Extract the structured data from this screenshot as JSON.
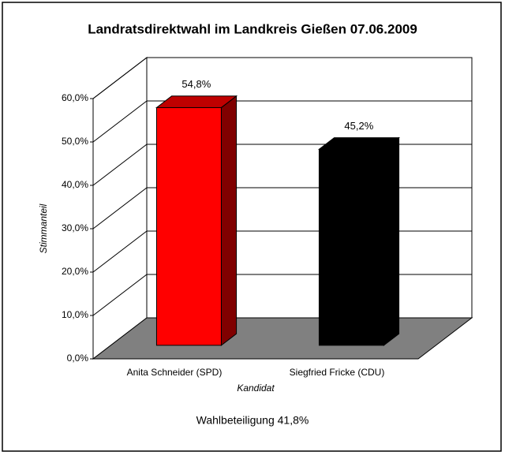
{
  "chart_data": {
    "type": "bar3d",
    "title": "Landratsdirektwahl im Landkreis Gießen 07.06.2009",
    "x_label": "Kandidat",
    "y_label": "Stimmanteil",
    "annotation": "Wahlbeteiligung 41,8%",
    "categories": [
      "Anita Schneider (SPD)",
      "Siegfried Fricke (CDU)"
    ],
    "values": [
      54.8,
      45.2
    ],
    "value_labels": [
      "54,8%",
      "45,2%"
    ],
    "colors": [
      "#ff0000",
      "#000000"
    ],
    "ylim": [
      0,
      60
    ],
    "yticks": [
      {
        "value": 0,
        "label": "0,0%"
      },
      {
        "value": 10,
        "label": "10,0%"
      },
      {
        "value": 20,
        "label": "20,0%"
      },
      {
        "value": 30,
        "label": "30,0%"
      },
      {
        "value": 40,
        "label": "40,0%"
      },
      {
        "value": 50,
        "label": "50,0%"
      },
      {
        "value": 60,
        "label": "60,0%"
      }
    ],
    "grid": true
  }
}
